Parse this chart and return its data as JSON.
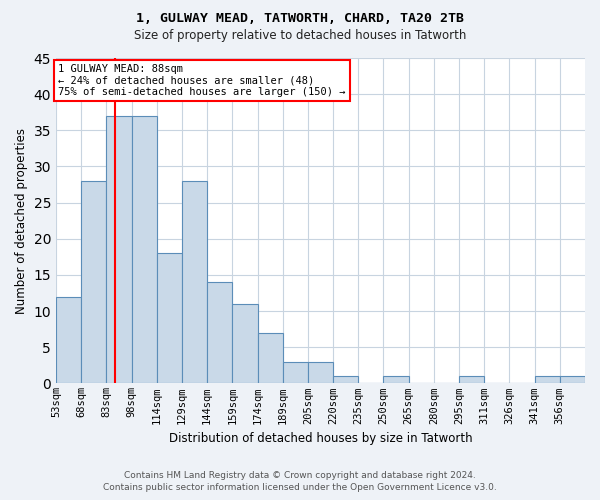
{
  "title1": "1, GULWAY MEAD, TATWORTH, CHARD, TA20 2TB",
  "title2": "Size of property relative to detached houses in Tatworth",
  "xlabel": "Distribution of detached houses by size in Tatworth",
  "ylabel": "Number of detached properties",
  "bin_labels": [
    "53sqm",
    "68sqm",
    "83sqm",
    "98sqm",
    "114sqm",
    "129sqm",
    "144sqm",
    "159sqm",
    "174sqm",
    "189sqm",
    "205sqm",
    "220sqm",
    "235sqm",
    "250sqm",
    "265sqm",
    "280sqm",
    "295sqm",
    "311sqm",
    "326sqm",
    "341sqm",
    "356sqm"
  ],
  "counts": [
    12,
    28,
    37,
    37,
    18,
    28,
    14,
    11,
    7,
    3,
    3,
    1,
    0,
    1,
    0,
    0,
    1,
    0,
    0,
    1,
    1
  ],
  "bar_color": "#c9d9e8",
  "bar_edge_color": "#5b8db8",
  "red_line_bin": 2,
  "annotation_line1": "1 GULWAY MEAD: 88sqm",
  "annotation_line2": "← 24% of detached houses are smaller (48)",
  "annotation_line3": "75% of semi-detached houses are larger (150) →",
  "ylim": [
    0,
    45
  ],
  "yticks": [
    0,
    5,
    10,
    15,
    20,
    25,
    30,
    35,
    40,
    45
  ],
  "footer_line1": "Contains HM Land Registry data © Crown copyright and database right 2024.",
  "footer_line2": "Contains public sector information licensed under the Open Government Licence v3.0.",
  "background_color": "#eef2f7",
  "plot_bg_color": "#ffffff",
  "grid_color": "#c8d4e0"
}
